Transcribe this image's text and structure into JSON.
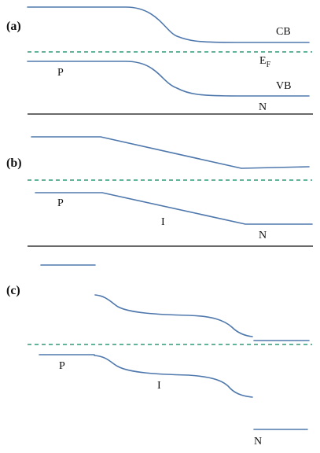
{
  "panels": {
    "a": {
      "label": "(a)",
      "cb_label": "CB",
      "fermi_label": "E",
      "fermi_sub": "F",
      "vb_label": "VB",
      "p_label": "P",
      "n_label": "N"
    },
    "b": {
      "label": "(b)",
      "p_label": "P",
      "i_label": "I",
      "n_label": "N"
    },
    "c": {
      "label": "(c)",
      "p_label": "P",
      "i_label": "I",
      "n_label": "N"
    }
  },
  "colors": {
    "band_line": "#4f78ad",
    "fermi_line": "#2f9a77",
    "divider": "#111111"
  }
}
